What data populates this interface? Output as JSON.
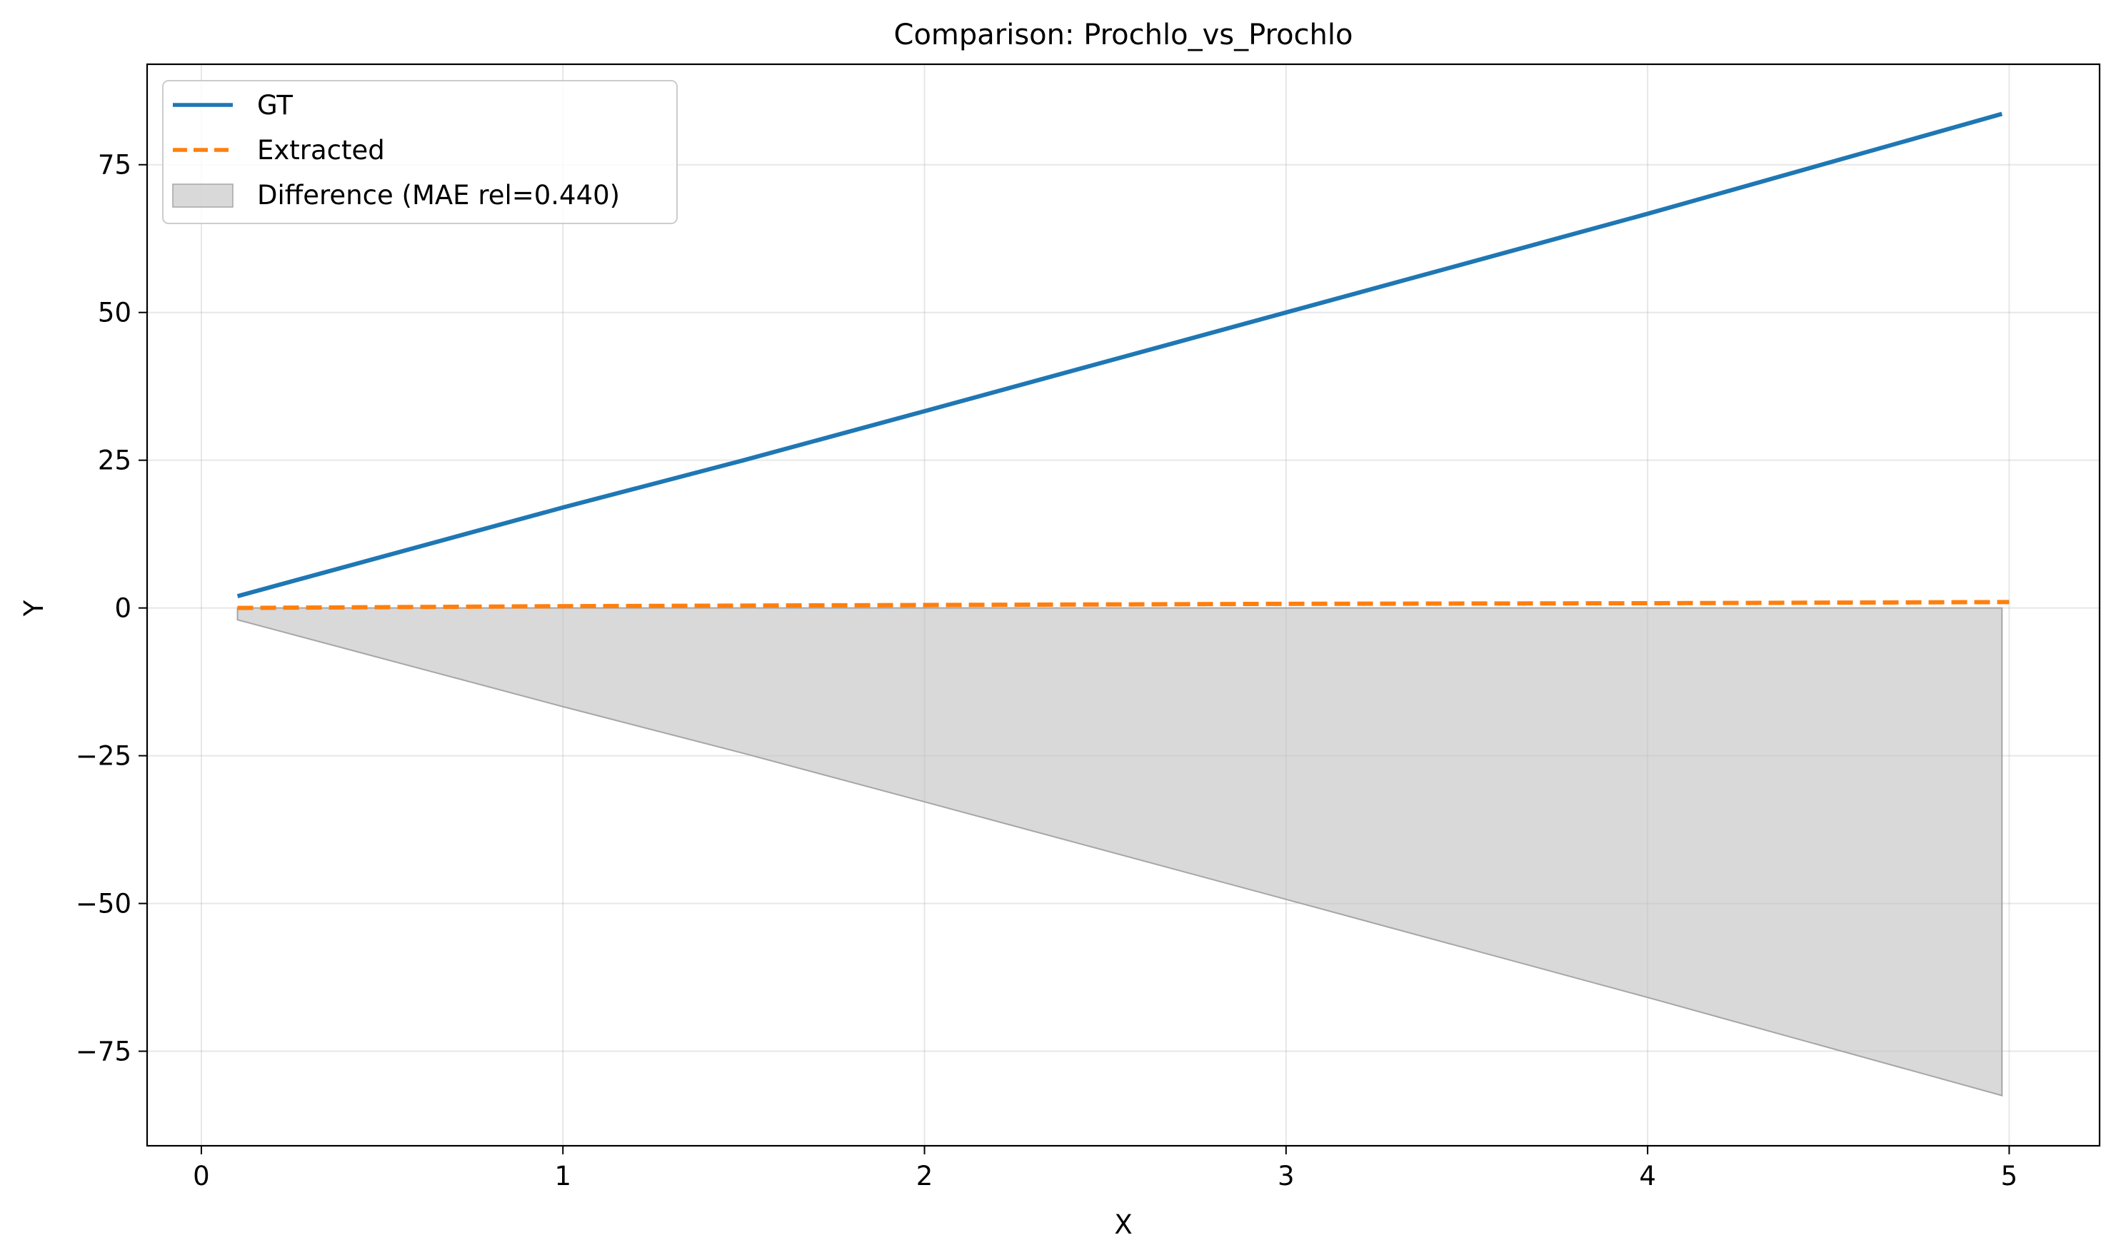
{
  "chart_data": {
    "type": "line",
    "title": "Comparison: Prochlo_vs_Prochlo",
    "xlabel": "X",
    "ylabel": "Y",
    "xlim": [
      -0.15,
      5.25
    ],
    "ylim": [
      -91,
      92
    ],
    "xticks": [
      0,
      1,
      2,
      3,
      4,
      5
    ],
    "xtick_labels": [
      "0",
      "1",
      "2",
      "3",
      "4",
      "5"
    ],
    "yticks": [
      75,
      50,
      25,
      0,
      -25,
      -50,
      -75
    ],
    "ytick_labels": [
      "75",
      "50",
      "25",
      "0",
      "−25",
      "−50",
      "−75"
    ],
    "grid": true,
    "legend_position": "top-left",
    "series": [
      {
        "name": "GT",
        "style": "solid",
        "color": "#1f77b4",
        "x": [
          0.1,
          1.0,
          1.5,
          2.0,
          3.0,
          4.0,
          4.98
        ],
        "y": [
          2.0,
          17.0,
          25.0,
          33.3,
          50.0,
          66.7,
          83.6
        ]
      },
      {
        "name": "Extracted",
        "style": "dashed",
        "color": "#ff7f0e",
        "x": [
          0.1,
          1.0,
          2.0,
          3.0,
          4.0,
          5.0
        ],
        "y": [
          0.0,
          0.3,
          0.5,
          0.7,
          0.8,
          1.0
        ]
      }
    ],
    "fill": {
      "name": "Difference (MAE rel=0.440)",
      "color": "#bfbfbf",
      "x": [
        0.1,
        1.0,
        1.5,
        2.0,
        3.0,
        4.0,
        4.98
      ],
      "y_upper": [
        0,
        0,
        0,
        0,
        0,
        0,
        0
      ],
      "y_lower": [
        -2.0,
        -16.7,
        -24.6,
        -32.8,
        -49.3,
        -65.9,
        -82.5
      ]
    }
  }
}
